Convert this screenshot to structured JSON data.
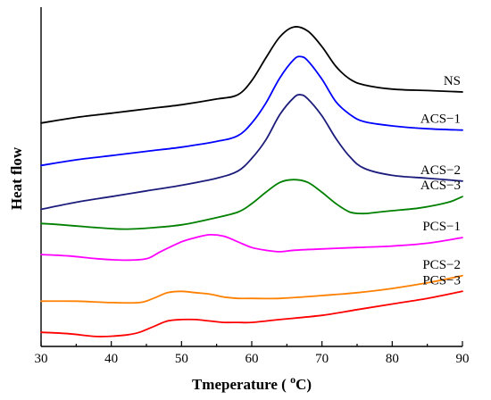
{
  "chart_data": {
    "type": "line",
    "xlabel": "Tmeperature ( oC)",
    "xlabel_parts": {
      "before": "Tmeperature ( ",
      "sup": "o",
      "after": "C)"
    },
    "ylabel": "Heat flow",
    "xlim": [
      30,
      90
    ],
    "x_ticks": [
      "30",
      "40",
      "50",
      "60",
      "70",
      "80",
      "90"
    ],
    "y_ticks": [],
    "grid": false,
    "legend": "inline labels at right",
    "series": [
      {
        "name": "NS",
        "color": "#000000",
        "x": [
          30,
          35,
          40,
          45,
          50,
          55,
          58,
          60,
          62,
          64,
          66,
          68,
          70,
          72,
          74,
          76,
          80,
          85,
          90
        ],
        "y": [
          7.9,
          8.1,
          8.25,
          8.4,
          8.55,
          8.75,
          8.9,
          9.4,
          10.2,
          10.95,
          11.3,
          11.15,
          10.6,
          9.9,
          9.45,
          9.25,
          9.1,
          9.05,
          9.0
        ]
      },
      {
        "name": "ACS−1",
        "color": "#0000FF",
        "x": [
          30,
          35,
          40,
          45,
          50,
          55,
          58,
          60,
          62,
          64,
          66,
          67,
          68,
          70,
          72,
          74,
          76,
          80,
          85,
          90
        ],
        "y": [
          6.4,
          6.6,
          6.75,
          6.9,
          7.05,
          7.25,
          7.45,
          7.9,
          8.6,
          9.5,
          10.15,
          10.25,
          10.1,
          9.45,
          8.65,
          8.2,
          7.95,
          7.8,
          7.7,
          7.65
        ]
      },
      {
        "name": "ACS−2",
        "color": "#1C1C7C",
        "x": [
          30,
          35,
          40,
          45,
          50,
          55,
          58,
          60,
          62,
          64,
          66,
          67,
          68,
          70,
          72,
          74,
          76,
          80,
          85,
          90
        ],
        "y": [
          4.85,
          5.1,
          5.3,
          5.5,
          5.7,
          5.95,
          6.2,
          6.65,
          7.3,
          8.2,
          8.8,
          8.9,
          8.75,
          8.15,
          7.35,
          6.7,
          6.3,
          6.05,
          5.95,
          5.85
        ]
      },
      {
        "name": "ACS−3",
        "color": "#008000",
        "x": [
          30,
          33,
          38,
          42,
          46,
          50,
          54,
          58,
          60,
          62,
          64,
          66,
          68,
          70,
          72,
          74,
          76,
          78,
          80,
          84,
          88,
          90
        ],
        "y": [
          4.35,
          4.3,
          4.2,
          4.15,
          4.2,
          4.3,
          4.5,
          4.75,
          5.05,
          5.45,
          5.8,
          5.9,
          5.8,
          5.45,
          5.05,
          4.75,
          4.7,
          4.75,
          4.8,
          4.9,
          5.1,
          5.3
        ]
      },
      {
        "name": "PCS−1",
        "color": "#FF00FF",
        "x": [
          30,
          34,
          38,
          42,
          45,
          47,
          50,
          52,
          54,
          56,
          58,
          60,
          62,
          64,
          66,
          70,
          75,
          80,
          85,
          90
        ],
        "y": [
          3.25,
          3.2,
          3.1,
          3.05,
          3.1,
          3.35,
          3.7,
          3.85,
          3.95,
          3.9,
          3.7,
          3.5,
          3.4,
          3.35,
          3.4,
          3.45,
          3.5,
          3.55,
          3.65,
          3.85
        ]
      },
      {
        "name": "PCS−2",
        "color": "#FF8000",
        "x": [
          30,
          35,
          40,
          44,
          46,
          48,
          50,
          52,
          54,
          56,
          58,
          60,
          64,
          70,
          75,
          80,
          85,
          90
        ],
        "y": [
          1.6,
          1.6,
          1.55,
          1.55,
          1.7,
          1.9,
          1.95,
          1.9,
          1.85,
          1.75,
          1.7,
          1.7,
          1.7,
          1.8,
          1.9,
          2.05,
          2.25,
          2.5
        ]
      },
      {
        "name": "PCS−3",
        "color": "#FF0000",
        "x": [
          30,
          34,
          38,
          42,
          44,
          46,
          48,
          50,
          52,
          54,
          56,
          58,
          60,
          64,
          70,
          75,
          80,
          85,
          90
        ],
        "y": [
          0.5,
          0.45,
          0.35,
          0.4,
          0.5,
          0.7,
          0.9,
          0.95,
          0.95,
          0.9,
          0.85,
          0.85,
          0.85,
          0.95,
          1.1,
          1.3,
          1.5,
          1.7,
          1.95
        ]
      }
    ],
    "labels": [
      {
        "text": "NS",
        "series": 0
      },
      {
        "text": "ACS−1",
        "series": 1
      },
      {
        "text": "ACS−2",
        "series": 2
      },
      {
        "text": "ACS−3",
        "series": 3
      },
      {
        "text": "PCS−1",
        "series": 4
      },
      {
        "text": "PCS−2",
        "series": 5
      },
      {
        "text": "PCS−3",
        "series": 6
      }
    ]
  }
}
